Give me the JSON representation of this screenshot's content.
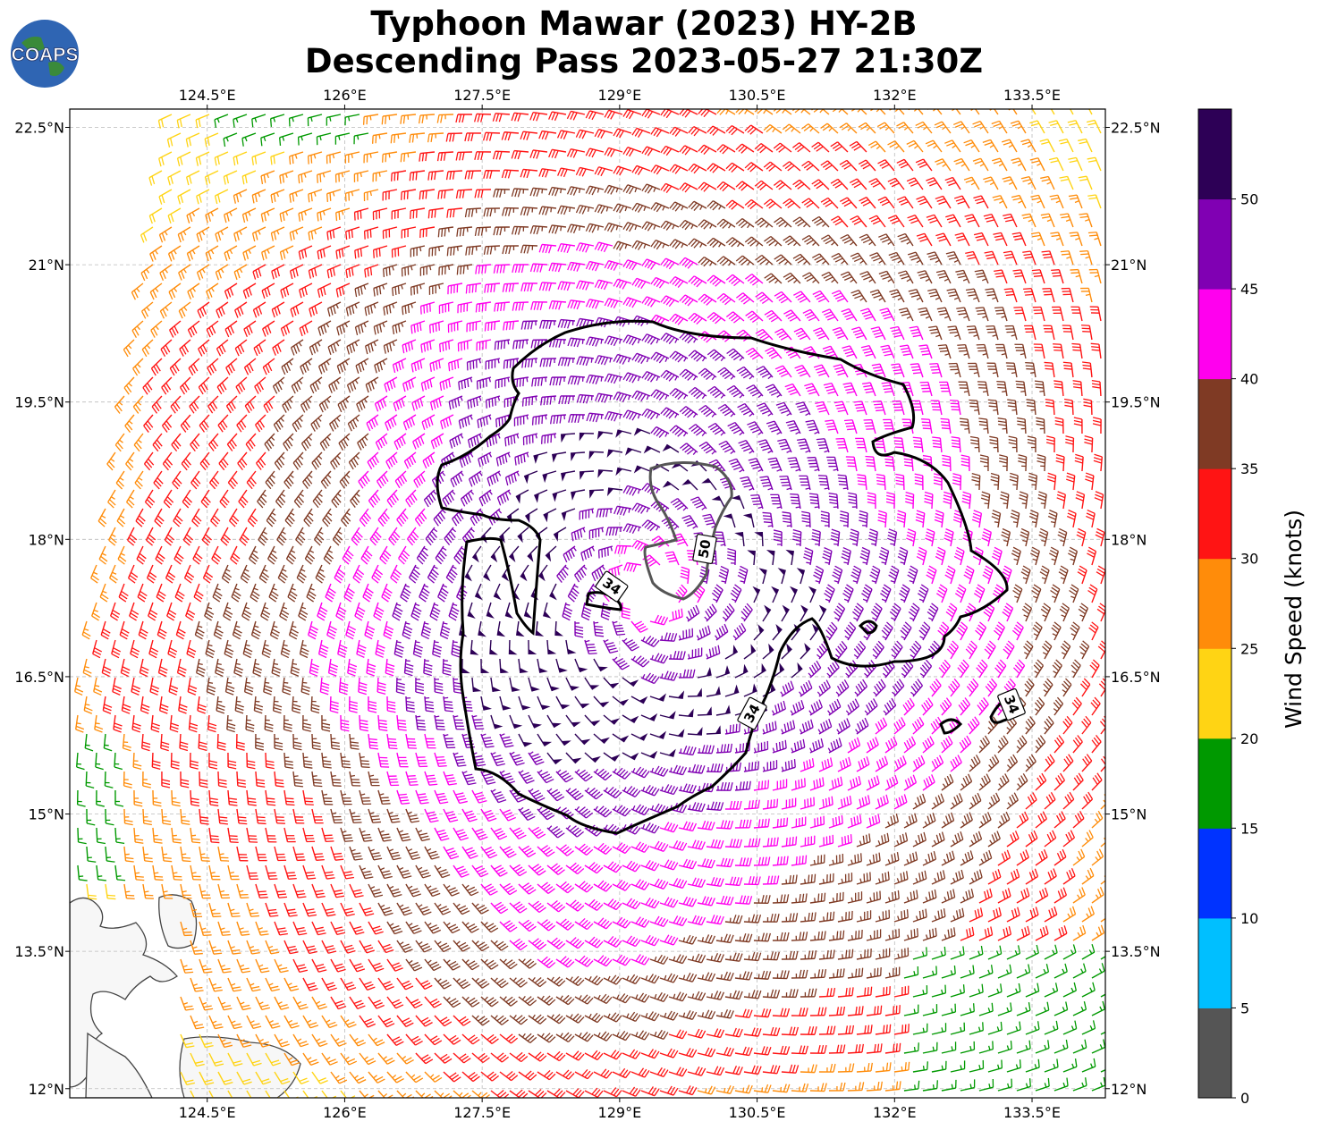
{
  "title": {
    "line1": "Typhoon Mawar (2023) HY-2B",
    "line2": "Descending Pass 2023-05-27 21:30Z"
  },
  "logo": {
    "text": "COAPS",
    "icon": "globe-icon"
  },
  "map": {
    "lon_range": [
      123.0,
      134.3
    ],
    "lat_range": [
      11.9,
      22.7
    ],
    "lon_ticks": [
      "124.5°E",
      "126°E",
      "127.5°E",
      "129°E",
      "130.5°E",
      "132°E",
      "133.5°E"
    ],
    "lat_ticks": [
      "22.5°N",
      "21°N",
      "19.5°N",
      "18°N",
      "16.5°N",
      "15°N",
      "13.5°N",
      "12°N"
    ],
    "grid": true,
    "storm_center": {
      "lon": 129.3,
      "lat": 17.4
    },
    "contours": [
      {
        "level": 34,
        "label": "34",
        "color": "#000000"
      },
      {
        "level": 50,
        "label": "50",
        "color": "#555555"
      }
    ],
    "land": "Philippines (Luzon / Catanduanes region)"
  },
  "colorbar": {
    "title": "Wind Speed (knots)",
    "tick_labels": [
      "0",
      "5",
      "10",
      "15",
      "20",
      "25",
      "30",
      "35",
      "40",
      "45",
      "50"
    ],
    "colors": [
      "#555555",
      "#00bfff",
      "#0033ff",
      "#009900",
      "#ffd414",
      "#ff8c0a",
      "#ff1414",
      "#7f3a24",
      "#ff00ee",
      "#8000b3",
      "#2d0056"
    ]
  }
}
